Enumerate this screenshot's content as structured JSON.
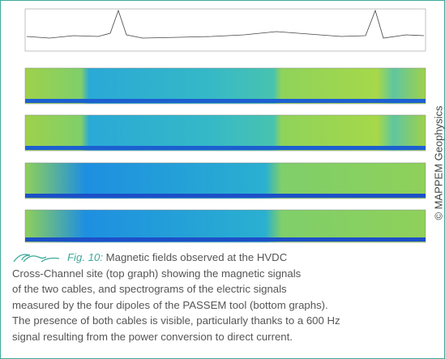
{
  "copyright": "© MAPPEM Geophysics",
  "caption": {
    "label": "Fig. 10:",
    "lines": [
      "Magnetic fields observed at the HVDC",
      "Cross-Channel site (top graph) showing the magnetic signals",
      "of the two cables, and spectrograms of the electric signals",
      "measured by the four dipoles of the PASSEM tool (bottom graphs).",
      "The presence of both cables is visible, particularly thanks to a 600 Hz",
      "signal resulting from the power conversion to direct current."
    ]
  }
}
